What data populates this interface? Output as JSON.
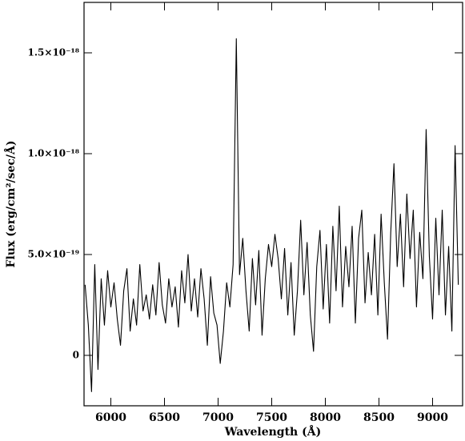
{
  "chart_data": {
    "type": "line",
    "xlabel": "Wavelength (Å)",
    "ylabel": "Flux (erg/cm²/sec/Å)",
    "color": "#000000",
    "xlim": [
      5750,
      9280
    ],
    "ylim": [
      -2.5e-19,
      1.75e-18
    ],
    "xticks": [
      6000,
      6500,
      7000,
      7500,
      8000,
      8500,
      9000
    ],
    "yticks": [
      0,
      {
        "value": 5e-19,
        "label": "5.0×10⁻¹⁹"
      },
      {
        "value": 1e-18,
        "label": "1.0×10⁻¹⁸"
      },
      {
        "value": 1.5e-18,
        "label": "1.5×10⁻¹⁸"
      }
    ],
    "x": [
      5760,
      5790,
      5820,
      5850,
      5880,
      5910,
      5940,
      5970,
      6000,
      6030,
      6060,
      6090,
      6120,
      6150,
      6180,
      6210,
      6240,
      6270,
      6300,
      6330,
      6360,
      6390,
      6420,
      6450,
      6480,
      6510,
      6540,
      6570,
      6600,
      6630,
      6660,
      6690,
      6720,
      6750,
      6780,
      6810,
      6840,
      6870,
      6900,
      6930,
      6960,
      6990,
      7020,
      7050,
      7080,
      7110,
      7140,
      7170,
      7200,
      7230,
      7260,
      7290,
      7320,
      7350,
      7380,
      7410,
      7440,
      7470,
      7500,
      7530,
      7560,
      7590,
      7620,
      7650,
      7680,
      7710,
      7740,
      7770,
      7800,
      7830,
      7860,
      7890,
      7920,
      7950,
      7980,
      8010,
      8040,
      8070,
      8100,
      8130,
      8160,
      8190,
      8220,
      8250,
      8280,
      8310,
      8340,
      8370,
      8400,
      8430,
      8460,
      8490,
      8520,
      8550,
      8580,
      8610,
      8640,
      8670,
      8700,
      8730,
      8760,
      8790,
      8820,
      8850,
      8880,
      8910,
      8940,
      8970,
      9000,
      9030,
      9060,
      9090,
      9120,
      9150,
      9180,
      9210,
      9240
    ],
    "values": [
      3.5e-19,
      1.5e-19,
      -1.8e-19,
      4.5e-19,
      -7e-20,
      3.8e-19,
      1.5e-19,
      4.2e-19,
      2.4e-19,
      3.6e-19,
      1.8e-19,
      5e-20,
      3.2e-19,
      4.3e-19,
      1.2e-19,
      2.8e-19,
      1.5e-19,
      4.5e-19,
      2.2e-19,
      3e-19,
      1.8e-19,
      3.5e-19,
      2e-19,
      4.6e-19,
      2.5e-19,
      1.6e-19,
      3.8e-19,
      2.4e-19,
      3.4e-19,
      1.4e-19,
      4.2e-19,
      2.6e-19,
      5e-19,
      2.2e-19,
      3.8e-19,
      1.9e-19,
      4.3e-19,
      2.8e-19,
      5e-20,
      3.9e-19,
      2.1e-19,
      1.5e-19,
      -4e-20,
      1.2e-19,
      3.6e-19,
      2.4e-19,
      4.5e-19,
      1.57e-18,
      4e-19,
      5.8e-19,
      3.2e-19,
      1.2e-19,
      4.8e-19,
      2.5e-19,
      5.2e-19,
      1e-19,
      3.8e-19,
      5.5e-19,
      4.4e-19,
      6e-19,
      4.8e-19,
      2.8e-19,
      5.3e-19,
      2e-19,
      4.6e-19,
      1e-19,
      3.2e-19,
      6.7e-19,
      3e-19,
      5.6e-19,
      2e-19,
      2e-20,
      4.4e-19,
      6.2e-19,
      2.3e-19,
      5.5e-19,
      1.6e-19,
      6.4e-19,
      3.2e-19,
      7.4e-19,
      2.4e-19,
      5.4e-19,
      3.4e-19,
      6.4e-19,
      1.6e-19,
      5.8e-19,
      7.2e-19,
      2.6e-19,
      5.1e-19,
      3e-19,
      6e-19,
      2e-19,
      7e-19,
      3.6e-19,
      8e-20,
      6.1e-19,
      9.5e-19,
      4.4e-19,
      7e-19,
      3.4e-19,
      8e-19,
      4.8e-19,
      7.2e-19,
      2.4e-19,
      6.1e-19,
      3.8e-19,
      1.12e-18,
      4.9e-19,
      1.8e-19,
      6.8e-19,
      3e-19,
      7.2e-19,
      2e-19,
      5.4e-19,
      1.2e-19,
      1.04e-18,
      3.5e-19
    ]
  }
}
